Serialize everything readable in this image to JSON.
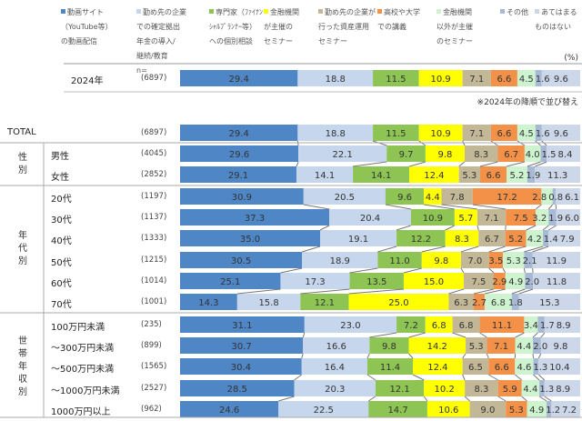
{
  "chart_data": {
    "type": "stacked-bar-horizontal",
    "unit": "(%)",
    "note": "※2024年の降順で並び替え",
    "legend": [
      {
        "label": "動画サイト\n（YouTube等）\nの動画配信",
        "color": "#4f86c6"
      },
      {
        "label": "勤め先の企業\nでの確定拠出\n年金の導入/\n継続/教育\nn=",
        "color": "#c6d6ec"
      },
      {
        "label": "専門家（ﾌｧｲﾅﾝ\nｼｬﾙﾌﾟﾗﾝﾅｰ等）\nへの個別相談",
        "color": "#8dc453"
      },
      {
        "label": "金融機関\nが主催の\nセミナー",
        "color": "#ffff00"
      },
      {
        "label": "勤め先の企業が\n行った資産運用\nセミナー",
        "color": "#c2b797"
      },
      {
        "label": "高校や大学\nでの講義",
        "color": "#f39148"
      },
      {
        "label": "金融機関\n以外が主催\nのセミナー",
        "color": "#cdf3cf"
      },
      {
        "label": "その他",
        "color": "#a8b9d6"
      },
      {
        "label": "あてはまる\nものはない",
        "color": "#ccd7ea"
      }
    ],
    "top_row": {
      "label": "2024年",
      "n": "(6897)",
      "values": [
        29.4,
        18.8,
        11.5,
        10.9,
        7.1,
        6.6,
        4.5,
        1.6,
        9.6
      ]
    },
    "rows": [
      {
        "group": "",
        "label": "TOTAL",
        "n": "(6897)",
        "values": [
          29.4,
          18.8,
          11.5,
          10.9,
          7.1,
          6.6,
          4.5,
          1.6,
          9.6
        ]
      },
      {
        "group": "性別",
        "label": "男性",
        "n": "(4045)",
        "values": [
          29.6,
          22.1,
          9.7,
          9.8,
          8.3,
          6.7,
          4.0,
          1.5,
          8.4
        ]
      },
      {
        "group": "性別",
        "label": "女性",
        "n": "(2852)",
        "values": [
          29.1,
          14.1,
          14.1,
          12.4,
          5.3,
          6.6,
          5.2,
          1.9,
          11.3
        ]
      },
      {
        "group": "年代別",
        "label": "20代",
        "n": "(1197)",
        "values": [
          30.9,
          20.5,
          9.6,
          4.4,
          7.8,
          17.2,
          2.8,
          0.8,
          6.1
        ]
      },
      {
        "group": "年代別",
        "label": "30代",
        "n": "(1137)",
        "values": [
          37.3,
          20.4,
          10.9,
          5.7,
          7.1,
          7.5,
          3.2,
          1.9,
          6.0
        ]
      },
      {
        "group": "年代別",
        "label": "40代",
        "n": "(1333)",
        "values": [
          35.0,
          19.1,
          12.2,
          8.3,
          6.7,
          5.2,
          4.2,
          1.4,
          7.9
        ]
      },
      {
        "group": "年代別",
        "label": "50代",
        "n": "(1215)",
        "values": [
          30.5,
          18.9,
          11.0,
          9.8,
          7.0,
          3.5,
          5.3,
          2.1,
          11.9
        ]
      },
      {
        "group": "年代別",
        "label": "60代",
        "n": "(1014)",
        "values": [
          25.1,
          17.3,
          13.5,
          15.0,
          7.5,
          2.9,
          4.9,
          2.0,
          11.8
        ]
      },
      {
        "group": "年代別",
        "label": "70代",
        "n": "(1001)",
        "values": [
          14.3,
          15.8,
          12.1,
          25.0,
          6.3,
          2.7,
          6.8,
          1.8,
          15.3
        ]
      },
      {
        "group": "世帯年収別",
        "label": "100万円未満",
        "n": "(235)",
        "values": [
          31.1,
          23.0,
          7.2,
          6.8,
          6.8,
          11.1,
          3.4,
          1.7,
          8.9
        ]
      },
      {
        "group": "世帯年収別",
        "label": "～300万円未満",
        "n": "(899)",
        "values": [
          30.7,
          16.6,
          9.8,
          14.2,
          5.3,
          7.1,
          4.4,
          2.0,
          9.8
        ]
      },
      {
        "group": "世帯年収別",
        "label": "～500万円未満",
        "n": "(1565)",
        "values": [
          30.4,
          16.4,
          11.4,
          12.4,
          6.5,
          6.6,
          4.6,
          1.3,
          10.4
        ]
      },
      {
        "group": "世帯年収別",
        "label": "～1000万円未満",
        "n": "(2527)",
        "values": [
          28.5,
          20.3,
          12.1,
          10.2,
          8.3,
          5.9,
          4.4,
          1.3,
          8.9
        ]
      },
      {
        "group": "世帯年収別",
        "label": "1000万円以上",
        "n": "(962)",
        "values": [
          24.6,
          22.5,
          14.7,
          10.6,
          9.0,
          5.3,
          4.9,
          1.2,
          7.2
        ]
      }
    ],
    "groups": [
      "性別",
      "年代別",
      "世帯年収別"
    ]
  }
}
